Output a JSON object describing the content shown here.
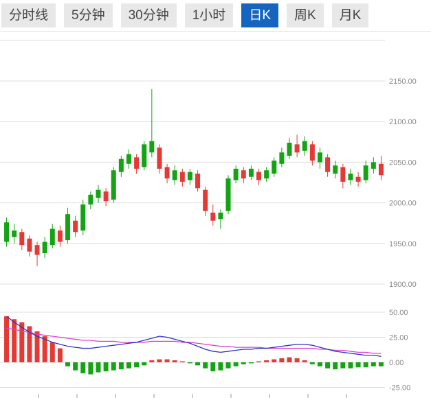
{
  "tabs": {
    "items": [
      {
        "label": "分时线",
        "active": false
      },
      {
        "label": "5分钟",
        "active": false
      },
      {
        "label": "30分钟",
        "active": false
      },
      {
        "label": "1小时",
        "active": false
      },
      {
        "label": "日K",
        "active": true
      },
      {
        "label": "周K",
        "active": false
      },
      {
        "label": "月K",
        "active": false
      }
    ]
  },
  "colors": {
    "up": "#13a413",
    "down": "#e53935",
    "dif_line": "#2733c9",
    "dea_line": "#e040cb",
    "grid": "#dddddd",
    "axis_text": "#888888",
    "tab_bg": "#e8e8e8",
    "tab_text": "#444444",
    "tab_active_bg": "#1565c0",
    "tab_active_text": "#ffffff",
    "background": "#ffffff"
  },
  "chart_data": [
    {
      "type": "candlestick",
      "title": "",
      "timeframe_selected": "日K",
      "y_axis_labels": [
        "2150.00",
        "2100.00",
        "2050.00",
        "2000.00",
        "1950.00",
        "1900.00"
      ],
      "ylim": [
        1880,
        2200
      ],
      "grid": true,
      "up_color": "#13a413",
      "down_color": "#e53935",
      "gridlines": [
        {
          "value": 2200,
          "label": ""
        },
        {
          "value": 2150,
          "label": "2150.00"
        },
        {
          "value": 2100,
          "label": "2100.00"
        },
        {
          "value": 2050,
          "label": "2050.00"
        },
        {
          "value": 2000,
          "label": "2000.00"
        },
        {
          "value": 1950,
          "label": "1950.00"
        },
        {
          "value": 1900,
          "label": "1900.00"
        }
      ],
      "candles_format": [
        "open",
        "high",
        "low",
        "close"
      ],
      "candles": [
        [
          1952,
          1982,
          1946,
          1976
        ],
        [
          1958,
          1974,
          1950,
          1966
        ],
        [
          1964,
          1968,
          1942,
          1948
        ],
        [
          1956,
          1960,
          1934,
          1940
        ],
        [
          1948,
          1952,
          1922,
          1936
        ],
        [
          1938,
          1958,
          1932,
          1952
        ],
        [
          1948,
          1974,
          1944,
          1968
        ],
        [
          1966,
          1972,
          1946,
          1952
        ],
        [
          1954,
          1994,
          1950,
          1986
        ],
        [
          1978,
          1984,
          1958,
          1964
        ],
        [
          1966,
          2004,
          1960,
          1998
        ],
        [
          1998,
          2014,
          1992,
          2010
        ],
        [
          2006,
          2022,
          2000,
          2016
        ],
        [
          2014,
          2018,
          1996,
          2002
        ],
        [
          2004,
          2044,
          2000,
          2040
        ],
        [
          2038,
          2058,
          2032,
          2054
        ],
        [
          2048,
          2066,
          2042,
          2060
        ],
        [
          2056,
          2060,
          2036,
          2042
        ],
        [
          2044,
          2076,
          2040,
          2072
        ],
        [
          2062,
          2140,
          2056,
          2076
        ],
        [
          2068,
          2072,
          2036,
          2042
        ],
        [
          2044,
          2048,
          2024,
          2030
        ],
        [
          2028,
          2046,
          2022,
          2040
        ],
        [
          2038,
          2042,
          2020,
          2026
        ],
        [
          2028,
          2042,
          2022,
          2038
        ],
        [
          2036,
          2040,
          2014,
          2018
        ],
        [
          2016,
          2020,
          1984,
          1990
        ],
        [
          1988,
          1998,
          1972,
          1978
        ],
        [
          1980,
          1992,
          1968,
          1988
        ],
        [
          1990,
          2034,
          1986,
          2030
        ],
        [
          2028,
          2046,
          2024,
          2042
        ],
        [
          2040,
          2044,
          2024,
          2030
        ],
        [
          2032,
          2046,
          2028,
          2042
        ],
        [
          2038,
          2042,
          2022,
          2028
        ],
        [
          2030,
          2044,
          2026,
          2040
        ],
        [
          2036,
          2056,
          2032,
          2052
        ],
        [
          2048,
          2068,
          2044,
          2062
        ],
        [
          2058,
          2080,
          2054,
          2074
        ],
        [
          2072,
          2084,
          2056,
          2062
        ],
        [
          2064,
          2082,
          2058,
          2076
        ],
        [
          2072,
          2076,
          2046,
          2052
        ],
        [
          2050,
          2068,
          2042,
          2062
        ],
        [
          2056,
          2060,
          2032,
          2038
        ],
        [
          2036,
          2052,
          2030,
          2046
        ],
        [
          2044,
          2048,
          2018,
          2026
        ],
        [
          2028,
          2042,
          2022,
          2036
        ],
        [
          2032,
          2038,
          2020,
          2026
        ],
        [
          2028,
          2052,
          2024,
          2046
        ],
        [
          2042,
          2056,
          2036,
          2050
        ],
        [
          2048,
          2058,
          2028,
          2034
        ]
      ]
    },
    {
      "type": "macd",
      "title": "",
      "y_axis_labels": [
        "50.00",
        "25.00",
        "0.00",
        "-25.00"
      ],
      "ylim": [
        -30,
        55
      ],
      "grid": true,
      "positive_color": "#e53935",
      "negative_color": "#13a413",
      "gridlines": [
        {
          "value": 50,
          "label": "50.00"
        },
        {
          "value": 25,
          "label": "25.00"
        },
        {
          "value": 0,
          "label": "0.00"
        },
        {
          "value": -25,
          "label": "-25.00"
        }
      ],
      "histogram": [
        46,
        43,
        40,
        36,
        31,
        26,
        20,
        14,
        -4,
        -8,
        -11,
        -12,
        -10,
        -9,
        -8,
        -7,
        -6,
        -5,
        -3,
        2,
        3,
        3,
        2,
        1,
        -1,
        -3,
        -6,
        -9,
        -8,
        -6,
        -4,
        -2,
        -1,
        1,
        2,
        3,
        4,
        5,
        4,
        2,
        -2,
        -4,
        -6,
        -7,
        -6,
        -6,
        -5,
        -5,
        -4,
        -4
      ],
      "dif": [
        46,
        40,
        35,
        30,
        26,
        23,
        20,
        18,
        16,
        15,
        14,
        14,
        15,
        16,
        17,
        18,
        19,
        20,
        22,
        24,
        26,
        25,
        23,
        21,
        19,
        16,
        13,
        11,
        10,
        11,
        12,
        13,
        13,
        14,
        14,
        15,
        16,
        17,
        18,
        18,
        17,
        15,
        13,
        11,
        10,
        9,
        8,
        7,
        7,
        6
      ],
      "dea": [
        34,
        33,
        31,
        30,
        28,
        27,
        26,
        25,
        24,
        23,
        22,
        22,
        21,
        21,
        21,
        20,
        20,
        20,
        20,
        21,
        21,
        21,
        21,
        20,
        20,
        19,
        18,
        17,
        16,
        16,
        15,
        15,
        15,
        15,
        14,
        14,
        14,
        14,
        14,
        14,
        14,
        13,
        13,
        12,
        12,
        11,
        10,
        10,
        9,
        9
      ]
    }
  ]
}
